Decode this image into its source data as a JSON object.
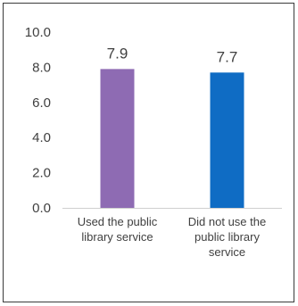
{
  "chart_data": {
    "type": "bar",
    "categories": [
      "Used the public library service",
      "Did not use the public library service"
    ],
    "category_lines": [
      [
        "Used the public",
        "library service"
      ],
      [
        "Did not use the",
        "public library",
        "service"
      ]
    ],
    "values": [
      7.9,
      7.7
    ],
    "data_labels": [
      "7.9",
      "7.7"
    ],
    "colors": [
      "#8e6bb3",
      "#0f6cc4"
    ],
    "ylim": [
      0,
      10
    ],
    "yticks": [
      "0.0",
      "2.0",
      "4.0",
      "6.0",
      "8.0",
      "10.0"
    ],
    "ytick_values": [
      0,
      2,
      4,
      6,
      8,
      10
    ],
    "grid": false,
    "title": "",
    "xlabel": "",
    "ylabel": ""
  }
}
